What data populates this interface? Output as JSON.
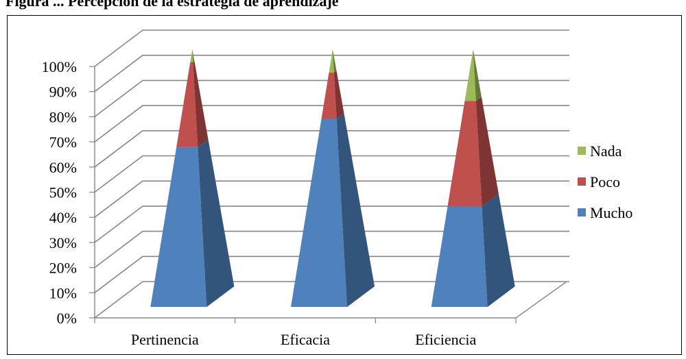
{
  "caption": "Figura ... Percepción de la estrategia de aprendizaje",
  "chart_data": {
    "type": "bar",
    "style": "3d-stacked-pyramid-100-percent",
    "categories": [
      "Pertinencia",
      "Eficacia",
      "Eficiencia"
    ],
    "series": [
      {
        "name": "Mucho",
        "values": [
          62,
          73,
          39
        ],
        "color": "#4f81bd"
      },
      {
        "name": "Poco",
        "values": [
          33,
          18,
          41
        ],
        "color": "#c0504d"
      },
      {
        "name": "Nada",
        "values": [
          5,
          9,
          20
        ],
        "color": "#9bbb59"
      }
    ],
    "y_ticks": [
      "0%",
      "10%",
      "20%",
      "30%",
      "40%",
      "50%",
      "60%",
      "70%",
      "80%",
      "90%",
      "100%"
    ],
    "ylim": [
      0,
      100
    ],
    "grid": true,
    "legend_position": "right"
  }
}
